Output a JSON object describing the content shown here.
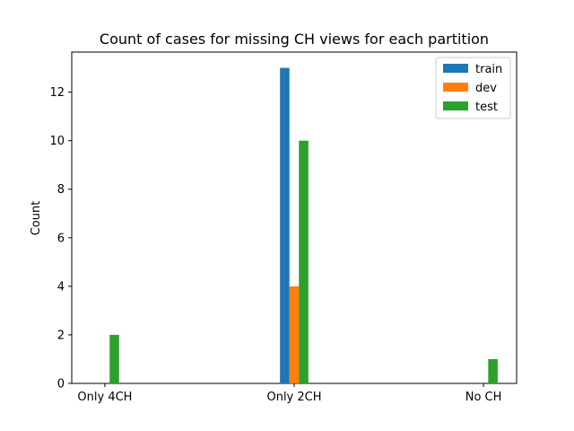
{
  "chart_data": {
    "type": "bar",
    "title": "Count of cases for missing CH views for each partition",
    "xlabel": "",
    "ylabel": "Count",
    "categories": [
      "Only 4CH",
      "Only 2CH",
      "No CH"
    ],
    "series": [
      {
        "name": "train",
        "color": "#1f77b4",
        "values": [
          0,
          13,
          0
        ]
      },
      {
        "name": "dev",
        "color": "#ff7f0e",
        "values": [
          0,
          4,
          0
        ]
      },
      {
        "name": "test",
        "color": "#2ca02c",
        "values": [
          2,
          10,
          1
        ]
      }
    ],
    "ylim": [
      0,
      13.65
    ],
    "yticks": [
      0,
      2,
      4,
      6,
      8,
      10,
      12
    ],
    "legend_position": "top-right",
    "grid": false
  }
}
